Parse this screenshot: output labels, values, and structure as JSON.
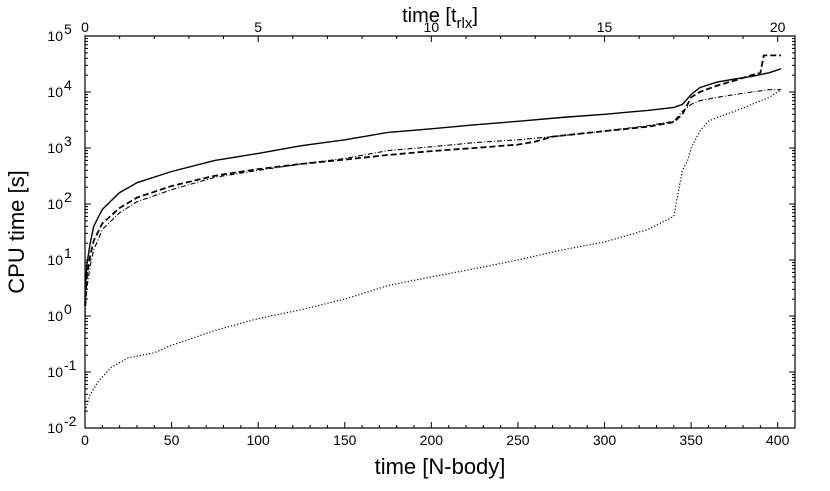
{
  "chart_data": {
    "type": "line",
    "xlabel": "time [N-body]",
    "x2label_main": "time [t",
    "x2label_sub": "rlx",
    "x2label_end": "]",
    "ylabel": "CPU time [s]",
    "xlim": [
      0,
      410
    ],
    "ylim": [
      0.01,
      100000
    ],
    "yscale": "log",
    "x2lim": [
      0,
      20.5
    ],
    "x_ticks": [
      0,
      50,
      100,
      150,
      200,
      250,
      300,
      350,
      400
    ],
    "x_tick_labels": [
      "0",
      "50",
      "100",
      "150",
      "200",
      "250",
      "300",
      "350",
      "400"
    ],
    "x2_ticks": [
      0,
      5,
      10,
      15,
      20
    ],
    "x2_tick_labels": [
      "0",
      "5",
      "10",
      "15",
      "20"
    ],
    "y_ticks": [
      0.01,
      0.1,
      1,
      10,
      100,
      1000,
      10000,
      100000
    ],
    "y_tick_labels": [
      {
        "base": "10",
        "exp": "-2"
      },
      {
        "base": "10",
        "exp": "-1"
      },
      {
        "base": "10",
        "exp": "0"
      },
      {
        "base": "10",
        "exp": "1"
      },
      {
        "base": "10",
        "exp": "2"
      },
      {
        "base": "10",
        "exp": "3"
      },
      {
        "base": "10",
        "exp": "4"
      },
      {
        "base": "10",
        "exp": "5"
      }
    ],
    "grid": false,
    "series": [
      {
        "style": "solid",
        "color": "#000000",
        "x": [
          0,
          1,
          3,
          5,
          10,
          20,
          30,
          50,
          75,
          100,
          125,
          150,
          175,
          200,
          225,
          250,
          275,
          300,
          325,
          340,
          345,
          350,
          355,
          365,
          375,
          385,
          395,
          402
        ],
        "y": [
          2,
          8,
          20,
          40,
          80,
          160,
          240,
          380,
          600,
          800,
          1100,
          1400,
          1900,
          2200,
          2600,
          3000,
          3500,
          4000,
          4700,
          5300,
          6000,
          9000,
          12000,
          15000,
          17000,
          19000,
          22000,
          26000
        ]
      },
      {
        "style": "dashed",
        "color": "#000000",
        "x": [
          0,
          1,
          3,
          5,
          10,
          20,
          30,
          50,
          75,
          100,
          125,
          150,
          175,
          200,
          225,
          250,
          260,
          270,
          300,
          325,
          340,
          345,
          350,
          355,
          365,
          375,
          385,
          390,
          392,
          395,
          402
        ],
        "y": [
          1.5,
          5,
          12,
          22,
          45,
          85,
          130,
          210,
          320,
          420,
          520,
          620,
          750,
          880,
          1000,
          1150,
          1300,
          1600,
          2000,
          2400,
          2900,
          4000,
          8000,
          10000,
          13000,
          16000,
          20000,
          22000,
          45000,
          45000,
          45000
        ]
      },
      {
        "style": "dashdot",
        "color": "#000000",
        "x": [
          0,
          1,
          3,
          5,
          10,
          20,
          30,
          50,
          75,
          100,
          125,
          150,
          175,
          200,
          225,
          250,
          275,
          300,
          325,
          340,
          345,
          350,
          355,
          365,
          375,
          385,
          395,
          402
        ],
        "y": [
          1,
          3,
          8,
          15,
          35,
          70,
          110,
          180,
          300,
          400,
          520,
          650,
          900,
          1050,
          1250,
          1400,
          1650,
          2000,
          2500,
          3000,
          4500,
          6000,
          7000,
          8000,
          9000,
          10000,
          11000,
          11000
        ]
      },
      {
        "style": "dotted",
        "color": "#000000",
        "x": [
          0,
          3,
          8,
          15,
          25,
          40,
          50,
          75,
          100,
          125,
          150,
          175,
          200,
          225,
          250,
          275,
          300,
          325,
          340,
          345,
          348,
          350,
          355,
          360,
          365,
          375,
          385,
          395,
          402
        ],
        "y": [
          0.02,
          0.04,
          0.07,
          0.12,
          0.18,
          0.22,
          0.3,
          0.55,
          0.9,
          1.3,
          2,
          3.5,
          5,
          7,
          10,
          15,
          21,
          35,
          60,
          400,
          600,
          1000,
          2000,
          3000,
          3500,
          4500,
          6000,
          8000,
          11000
        ]
      }
    ]
  }
}
